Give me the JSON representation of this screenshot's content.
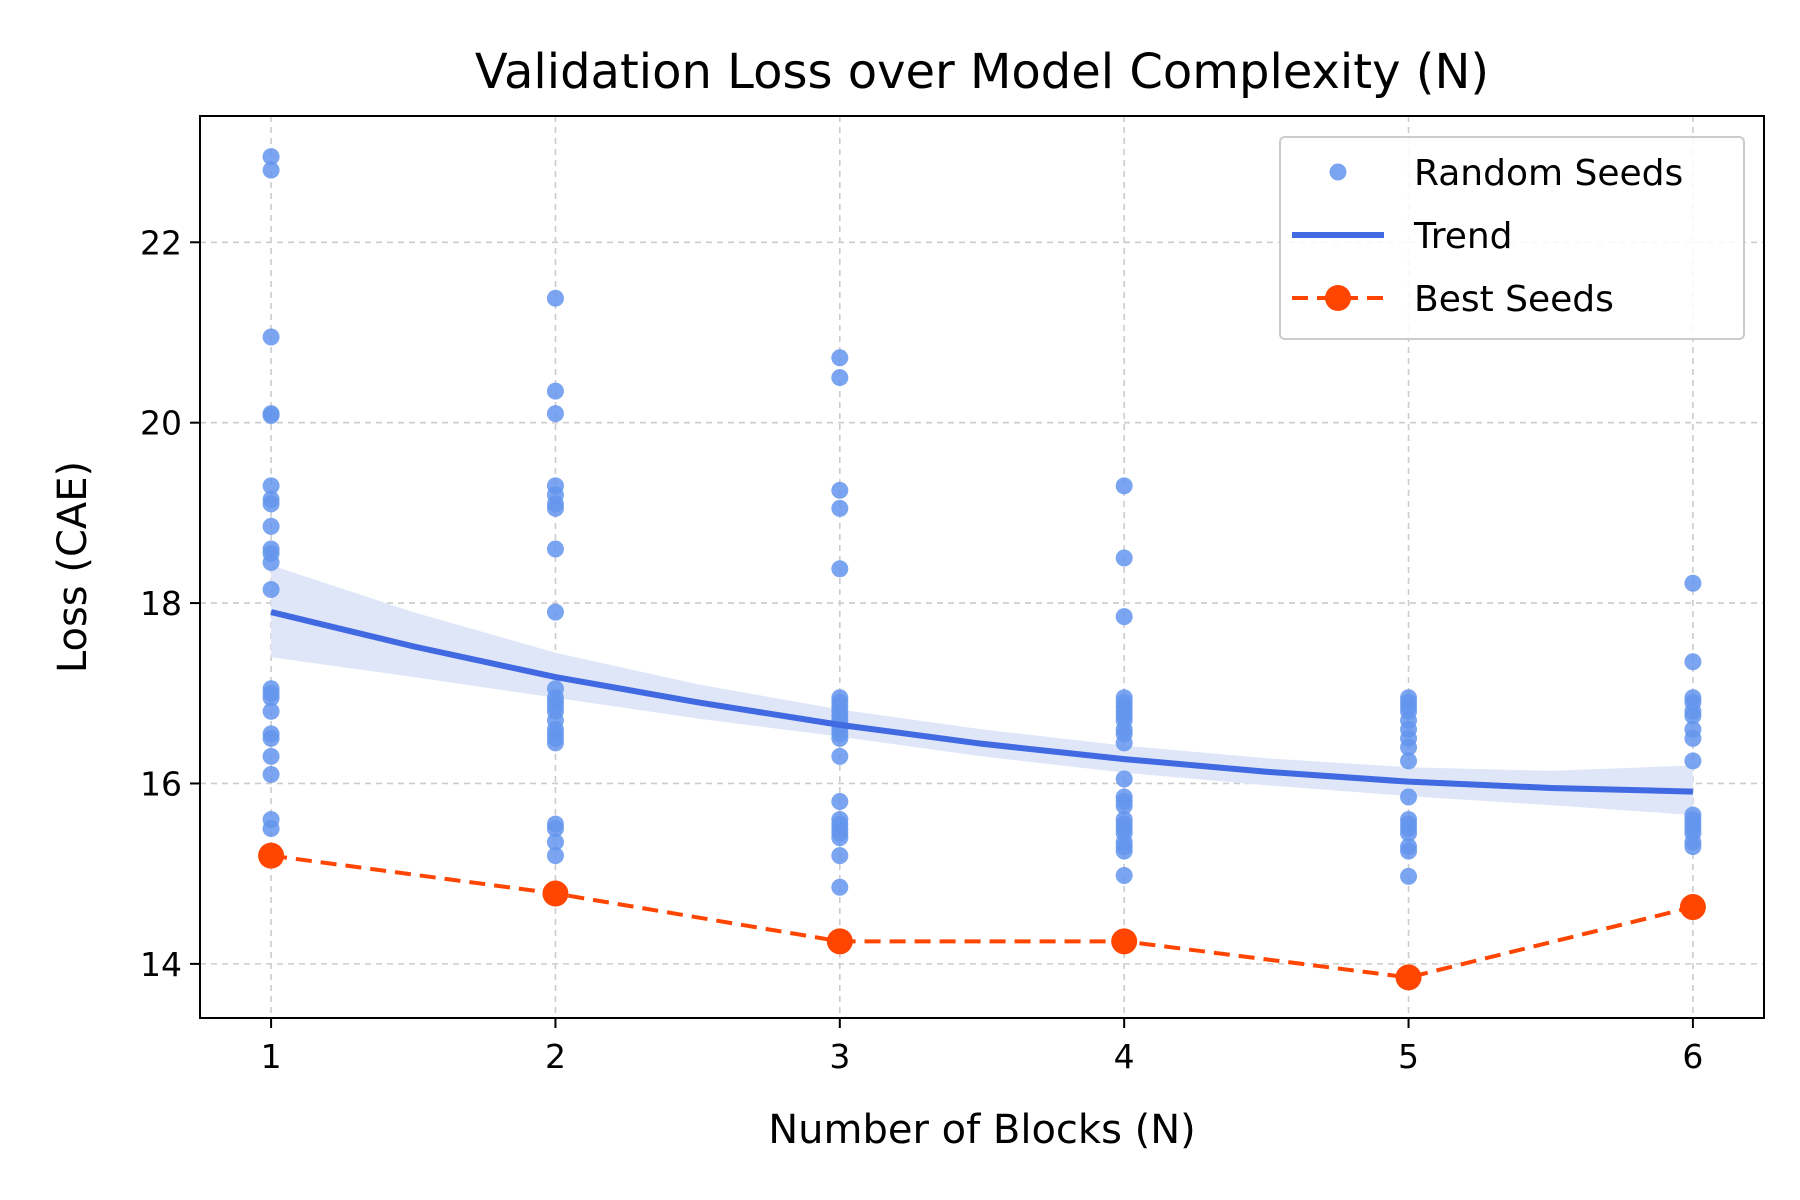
{
  "chart_data": {
    "type": "scatter",
    "title": "Validation Loss over Model Complexity (N)",
    "xlabel": "Number of Blocks (N)",
    "ylabel": "Loss (CAE)",
    "xlim": [
      0.75,
      6.25
    ],
    "ylim": [
      13.4,
      23.4
    ],
    "x_ticks": [
      1,
      2,
      3,
      4,
      5,
      6
    ],
    "y_ticks": [
      14,
      16,
      18,
      20,
      22
    ],
    "grid": true,
    "legend_position": "top-right",
    "legend": [
      "Random Seeds",
      "Trend",
      "Best Seeds"
    ],
    "colors": {
      "random_seeds": "#6495ED",
      "trend": "#4169E1",
      "trend_band": "#dfe6f8",
      "best_seeds": "#FF4500"
    },
    "series": [
      {
        "name": "Random Seeds",
        "type": "scatter",
        "points": [
          [
            1,
            22.95
          ],
          [
            1,
            22.8
          ],
          [
            1,
            20.95
          ],
          [
            1,
            20.1
          ],
          [
            1,
            20.08
          ],
          [
            1,
            19.3
          ],
          [
            1,
            19.15
          ],
          [
            1,
            19.1
          ],
          [
            1,
            18.85
          ],
          [
            1,
            18.6
          ],
          [
            1,
            18.55
          ],
          [
            1,
            18.45
          ],
          [
            1,
            18.15
          ],
          [
            1,
            17.05
          ],
          [
            1,
            17.0
          ],
          [
            1,
            16.95
          ],
          [
            1,
            16.8
          ],
          [
            1,
            16.55
          ],
          [
            1,
            16.5
          ],
          [
            1,
            16.3
          ],
          [
            1,
            16.1
          ],
          [
            1,
            15.6
          ],
          [
            1,
            15.5
          ],
          [
            2,
            21.38
          ],
          [
            2,
            20.35
          ],
          [
            2,
            20.1
          ],
          [
            2,
            19.3
          ],
          [
            2,
            19.2
          ],
          [
            2,
            19.1
          ],
          [
            2,
            19.05
          ],
          [
            2,
            18.6
          ],
          [
            2,
            17.9
          ],
          [
            2,
            17.05
          ],
          [
            2,
            16.95
          ],
          [
            2,
            16.9
          ],
          [
            2,
            16.85
          ],
          [
            2,
            16.8
          ],
          [
            2,
            16.7
          ],
          [
            2,
            16.6
          ],
          [
            2,
            16.55
          ],
          [
            2,
            16.5
          ],
          [
            2,
            16.45
          ],
          [
            2,
            15.55
          ],
          [
            2,
            15.5
          ],
          [
            2,
            15.35
          ],
          [
            2,
            15.2
          ],
          [
            3,
            20.72
          ],
          [
            3,
            20.5
          ],
          [
            3,
            19.25
          ],
          [
            3,
            19.05
          ],
          [
            3,
            18.38
          ],
          [
            3,
            16.95
          ],
          [
            3,
            16.9
          ],
          [
            3,
            16.85
          ],
          [
            3,
            16.8
          ],
          [
            3,
            16.75
          ],
          [
            3,
            16.7
          ],
          [
            3,
            16.65
          ],
          [
            3,
            16.6
          ],
          [
            3,
            16.55
          ],
          [
            3,
            16.5
          ],
          [
            3,
            16.3
          ],
          [
            3,
            15.8
          ],
          [
            3,
            15.6
          ],
          [
            3,
            15.55
          ],
          [
            3,
            15.5
          ],
          [
            3,
            15.45
          ],
          [
            3,
            15.4
          ],
          [
            3,
            15.2
          ],
          [
            3,
            14.85
          ],
          [
            4,
            19.3
          ],
          [
            4,
            18.5
          ],
          [
            4,
            17.85
          ],
          [
            4,
            16.95
          ],
          [
            4,
            16.9
          ],
          [
            4,
            16.85
          ],
          [
            4,
            16.8
          ],
          [
            4,
            16.75
          ],
          [
            4,
            16.7
          ],
          [
            4,
            16.6
          ],
          [
            4,
            16.55
          ],
          [
            4,
            16.45
          ],
          [
            4,
            16.05
          ],
          [
            4,
            15.85
          ],
          [
            4,
            15.8
          ],
          [
            4,
            15.75
          ],
          [
            4,
            15.6
          ],
          [
            4,
            15.55
          ],
          [
            4,
            15.5
          ],
          [
            4,
            15.45
          ],
          [
            4,
            15.35
          ],
          [
            4,
            15.3
          ],
          [
            4,
            15.25
          ],
          [
            4,
            14.98
          ],
          [
            5,
            16.95
          ],
          [
            5,
            16.9
          ],
          [
            5,
            16.85
          ],
          [
            5,
            16.8
          ],
          [
            5,
            16.7
          ],
          [
            5,
            16.6
          ],
          [
            5,
            16.5
          ],
          [
            5,
            16.4
          ],
          [
            5,
            16.25
          ],
          [
            5,
            15.85
          ],
          [
            5,
            15.6
          ],
          [
            5,
            15.55
          ],
          [
            5,
            15.5
          ],
          [
            5,
            15.45
          ],
          [
            5,
            15.3
          ],
          [
            5,
            15.25
          ],
          [
            5,
            14.97
          ],
          [
            6,
            18.22
          ],
          [
            6,
            17.35
          ],
          [
            6,
            16.95
          ],
          [
            6,
            16.9
          ],
          [
            6,
            16.8
          ],
          [
            6,
            16.75
          ],
          [
            6,
            16.6
          ],
          [
            6,
            16.5
          ],
          [
            6,
            16.25
          ],
          [
            6,
            15.65
          ],
          [
            6,
            15.6
          ],
          [
            6,
            15.55
          ],
          [
            6,
            15.5
          ],
          [
            6,
            15.45
          ],
          [
            6,
            15.35
          ],
          [
            6,
            15.3
          ]
        ]
      },
      {
        "name": "Trend",
        "type": "line",
        "x": [
          1,
          1.5,
          2,
          2.5,
          3,
          3.5,
          4,
          4.5,
          5,
          5.5,
          6
        ],
        "y": [
          17.9,
          17.52,
          17.18,
          16.9,
          16.65,
          16.44,
          16.27,
          16.13,
          16.02,
          15.95,
          15.91
        ],
        "band_lower": [
          17.4,
          17.18,
          16.95,
          16.72,
          16.52,
          16.3,
          16.12,
          15.98,
          15.86,
          15.76,
          15.65
        ],
        "band_upper": [
          18.42,
          17.9,
          17.45,
          17.1,
          16.82,
          16.6,
          16.42,
          16.28,
          16.18,
          16.14,
          16.2
        ]
      },
      {
        "name": "Best Seeds",
        "type": "line",
        "x": [
          1,
          2,
          3,
          4,
          5,
          6
        ],
        "y": [
          15.2,
          14.78,
          14.25,
          14.25,
          13.85,
          14.63
        ]
      }
    ]
  }
}
